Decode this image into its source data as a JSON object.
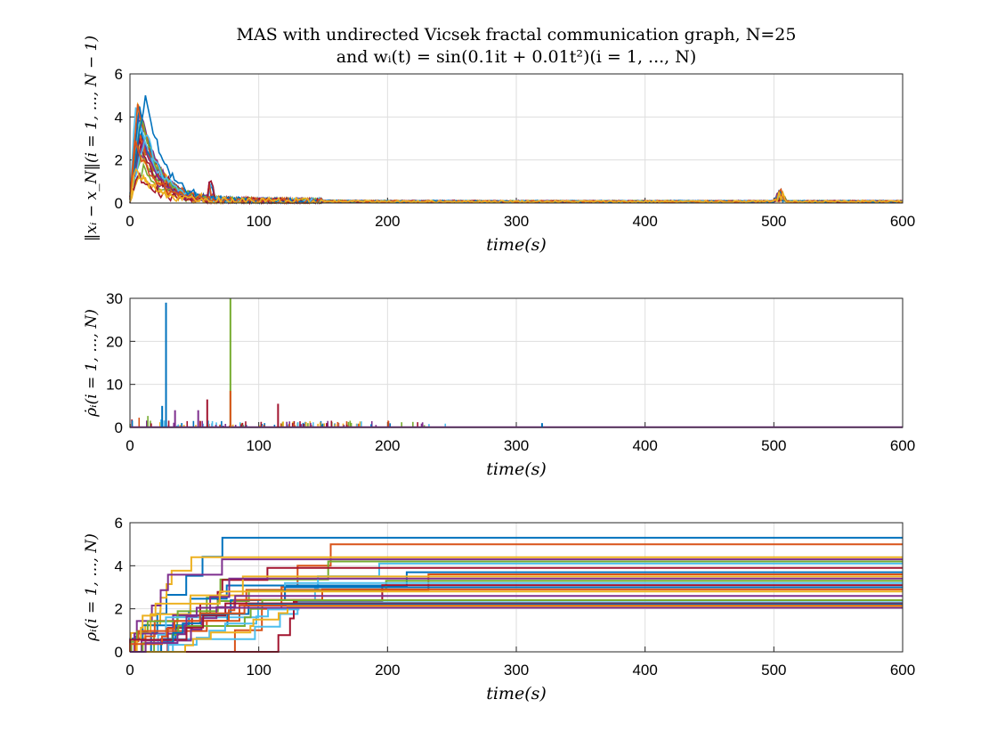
{
  "title": {
    "line1": "MAS with undirected Vicsek fractal communication graph, N=25",
    "line2": "and wᵢ(t) = sin(0.1it + 0.01t²)(i = 1, ..., N)"
  },
  "colors": [
    "#0072BD",
    "#D95319",
    "#EDB120",
    "#7E2F8E",
    "#77AC30",
    "#4DBEEE",
    "#A2142F"
  ],
  "chart_data": [
    {
      "type": "line",
      "xlabel": "time(s)",
      "ylabel": "‖xᵢ − x_N‖(i = 1, ..., N − 1)",
      "xlim": [
        0,
        600
      ],
      "ylim": [
        0,
        6
      ],
      "xticks": [
        "0",
        "100",
        "200",
        "300",
        "400",
        "500",
        "600"
      ],
      "yticks": [
        "0",
        "2",
        "4",
        "6"
      ],
      "grid": true,
      "n_series": 24,
      "description_points": {
        "peak_near_t": 8,
        "peak_value": 5.0,
        "decay_to_by_t": 100,
        "settled_value": 0.1,
        "bump_at_t": 505,
        "bump_value": 0.7
      }
    },
    {
      "type": "line",
      "xlabel": "time(s)",
      "ylabel": "ρ̇ᵢ(i = 1, ..., N)",
      "xlim": [
        0,
        600
      ],
      "ylim": [
        0,
        30
      ],
      "xticks": [
        "0",
        "100",
        "200",
        "300",
        "400",
        "500",
        "600"
      ],
      "yticks": [
        "0",
        "10",
        "20",
        "30"
      ],
      "grid": true,
      "spikes": [
        {
          "t": 28,
          "value": 29,
          "color": "#0072BD"
        },
        {
          "t": 78,
          "value": 30,
          "color": "#77AC30"
        },
        {
          "t": 78,
          "value": 8.5,
          "color": "#D95319"
        },
        {
          "t": 60,
          "value": 6.5,
          "color": "#A2142F"
        },
        {
          "t": 115,
          "value": 5.5,
          "color": "#A2142F"
        },
        {
          "t": 25,
          "value": 5,
          "color": "#0072BD"
        },
        {
          "t": 35,
          "value": 4,
          "color": "#7E2F8E"
        },
        {
          "t": 53,
          "value": 4,
          "color": "#7E2F8E"
        },
        {
          "t": 320,
          "value": 1,
          "color": "#0072BD"
        }
      ]
    },
    {
      "type": "line",
      "xlabel": "time(s)",
      "ylabel": "ρᵢ(i = 1, ..., N)",
      "xlim": [
        0,
        600
      ],
      "ylim": [
        0,
        6
      ],
      "xticks": [
        "0",
        "100",
        "200",
        "300",
        "400",
        "500",
        "600"
      ],
      "yticks": [
        "0",
        "2",
        "4",
        "6"
      ],
      "grid": true,
      "final_values": [
        5.3,
        5.0,
        4.4,
        4.3,
        4.2,
        4.1,
        3.9,
        3.7,
        3.6,
        3.5,
        3.4,
        3.3,
        3.2,
        3.1,
        3.0,
        2.9,
        2.8,
        2.6,
        2.4,
        2.3,
        2.25,
        2.2,
        2.15,
        2.1,
        2.05
      ]
    }
  ]
}
